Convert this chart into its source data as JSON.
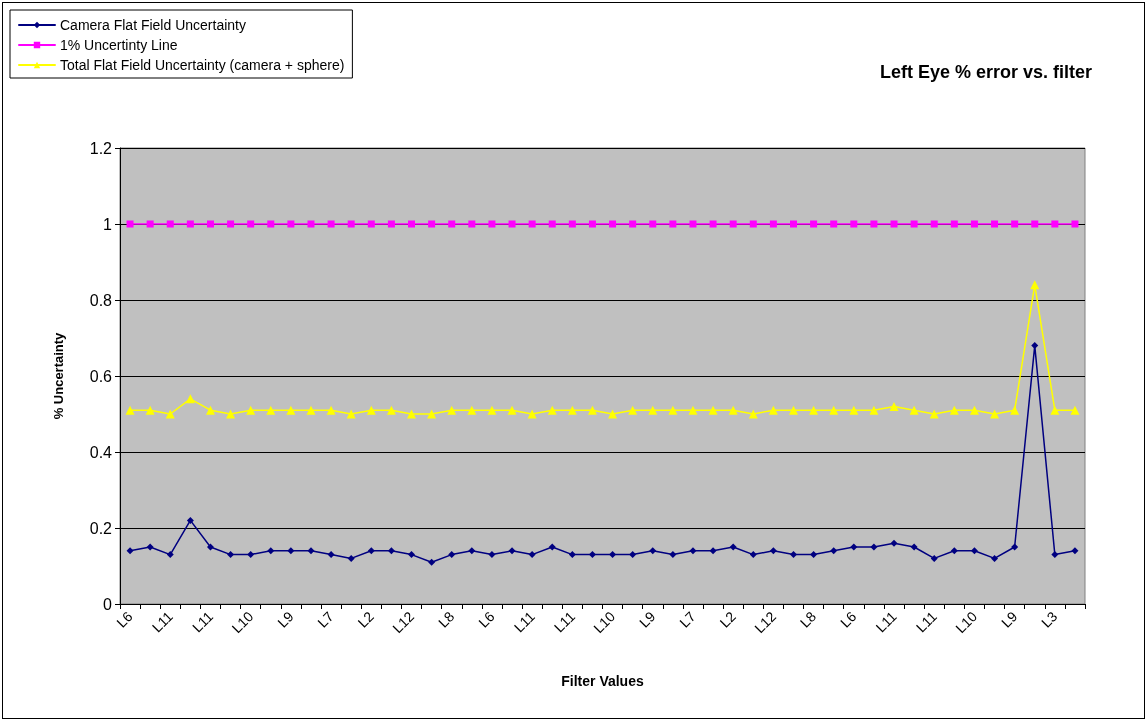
{
  "chart_data": {
    "type": "line",
    "title": "Left Eye % error vs. filter",
    "xlabel": "Filter Values",
    "ylabel": "% Uncertainty",
    "categories": [
      "L6",
      null,
      "L11",
      null,
      "L11",
      null,
      "L10",
      null,
      "L9",
      null,
      "L7",
      null,
      "L2",
      null,
      "L12",
      null,
      "L8",
      null,
      "L6",
      null,
      "L11",
      null,
      "L11",
      null,
      "L10",
      null,
      "L9",
      null,
      "L7",
      null,
      "L2",
      null,
      "L12",
      null,
      "L8",
      null,
      "L6",
      null,
      "L11",
      null,
      "L11",
      null,
      "L10",
      null,
      "L9",
      null,
      "L3",
      null
    ],
    "series": [
      {
        "name": "Camera Flat Field Uncertainty",
        "color": "#000080",
        "marker": "diamond",
        "values": [
          0.14,
          0.15,
          0.13,
          0.22,
          0.15,
          0.13,
          0.13,
          0.14,
          0.14,
          0.14,
          0.13,
          0.12,
          0.14,
          0.14,
          0.13,
          0.11,
          0.13,
          0.14,
          0.13,
          0.14,
          0.13,
          0.15,
          0.13,
          0.13,
          0.13,
          0.13,
          0.14,
          0.13,
          0.14,
          0.14,
          0.15,
          0.13,
          0.14,
          0.13,
          0.13,
          0.14,
          0.15,
          0.15,
          0.16,
          0.15,
          0.12,
          0.14,
          0.14,
          0.12,
          0.15,
          0.68,
          0.13,
          0.14
        ]
      },
      {
        "name": "1% Uncertinty Line",
        "color": "#ff00ff",
        "marker": "square",
        "values": [
          1,
          1,
          1,
          1,
          1,
          1,
          1,
          1,
          1,
          1,
          1,
          1,
          1,
          1,
          1,
          1,
          1,
          1,
          1,
          1,
          1,
          1,
          1,
          1,
          1,
          1,
          1,
          1,
          1,
          1,
          1,
          1,
          1,
          1,
          1,
          1,
          1,
          1,
          1,
          1,
          1,
          1,
          1,
          1,
          1,
          1,
          1,
          1
        ]
      },
      {
        "name": "Total Flat Field Uncertainty (camera + sphere)",
        "color": "#ffff00",
        "marker": "triangle",
        "values": [
          0.51,
          0.51,
          0.5,
          0.54,
          0.51,
          0.5,
          0.51,
          0.51,
          0.51,
          0.51,
          0.51,
          0.5,
          0.51,
          0.51,
          0.5,
          0.5,
          0.51,
          0.51,
          0.51,
          0.51,
          0.5,
          0.51,
          0.51,
          0.51,
          0.5,
          0.51,
          0.51,
          0.51,
          0.51,
          0.51,
          0.51,
          0.5,
          0.51,
          0.51,
          0.51,
          0.51,
          0.51,
          0.51,
          0.52,
          0.51,
          0.5,
          0.51,
          0.51,
          0.5,
          0.51,
          0.84,
          0.51,
          0.51
        ]
      }
    ],
    "ylim": [
      0,
      1.2
    ],
    "yticks": [
      0,
      0.2,
      0.4,
      0.6,
      0.8,
      1,
      1.2
    ],
    "grid": "y",
    "legend": "top left"
  }
}
